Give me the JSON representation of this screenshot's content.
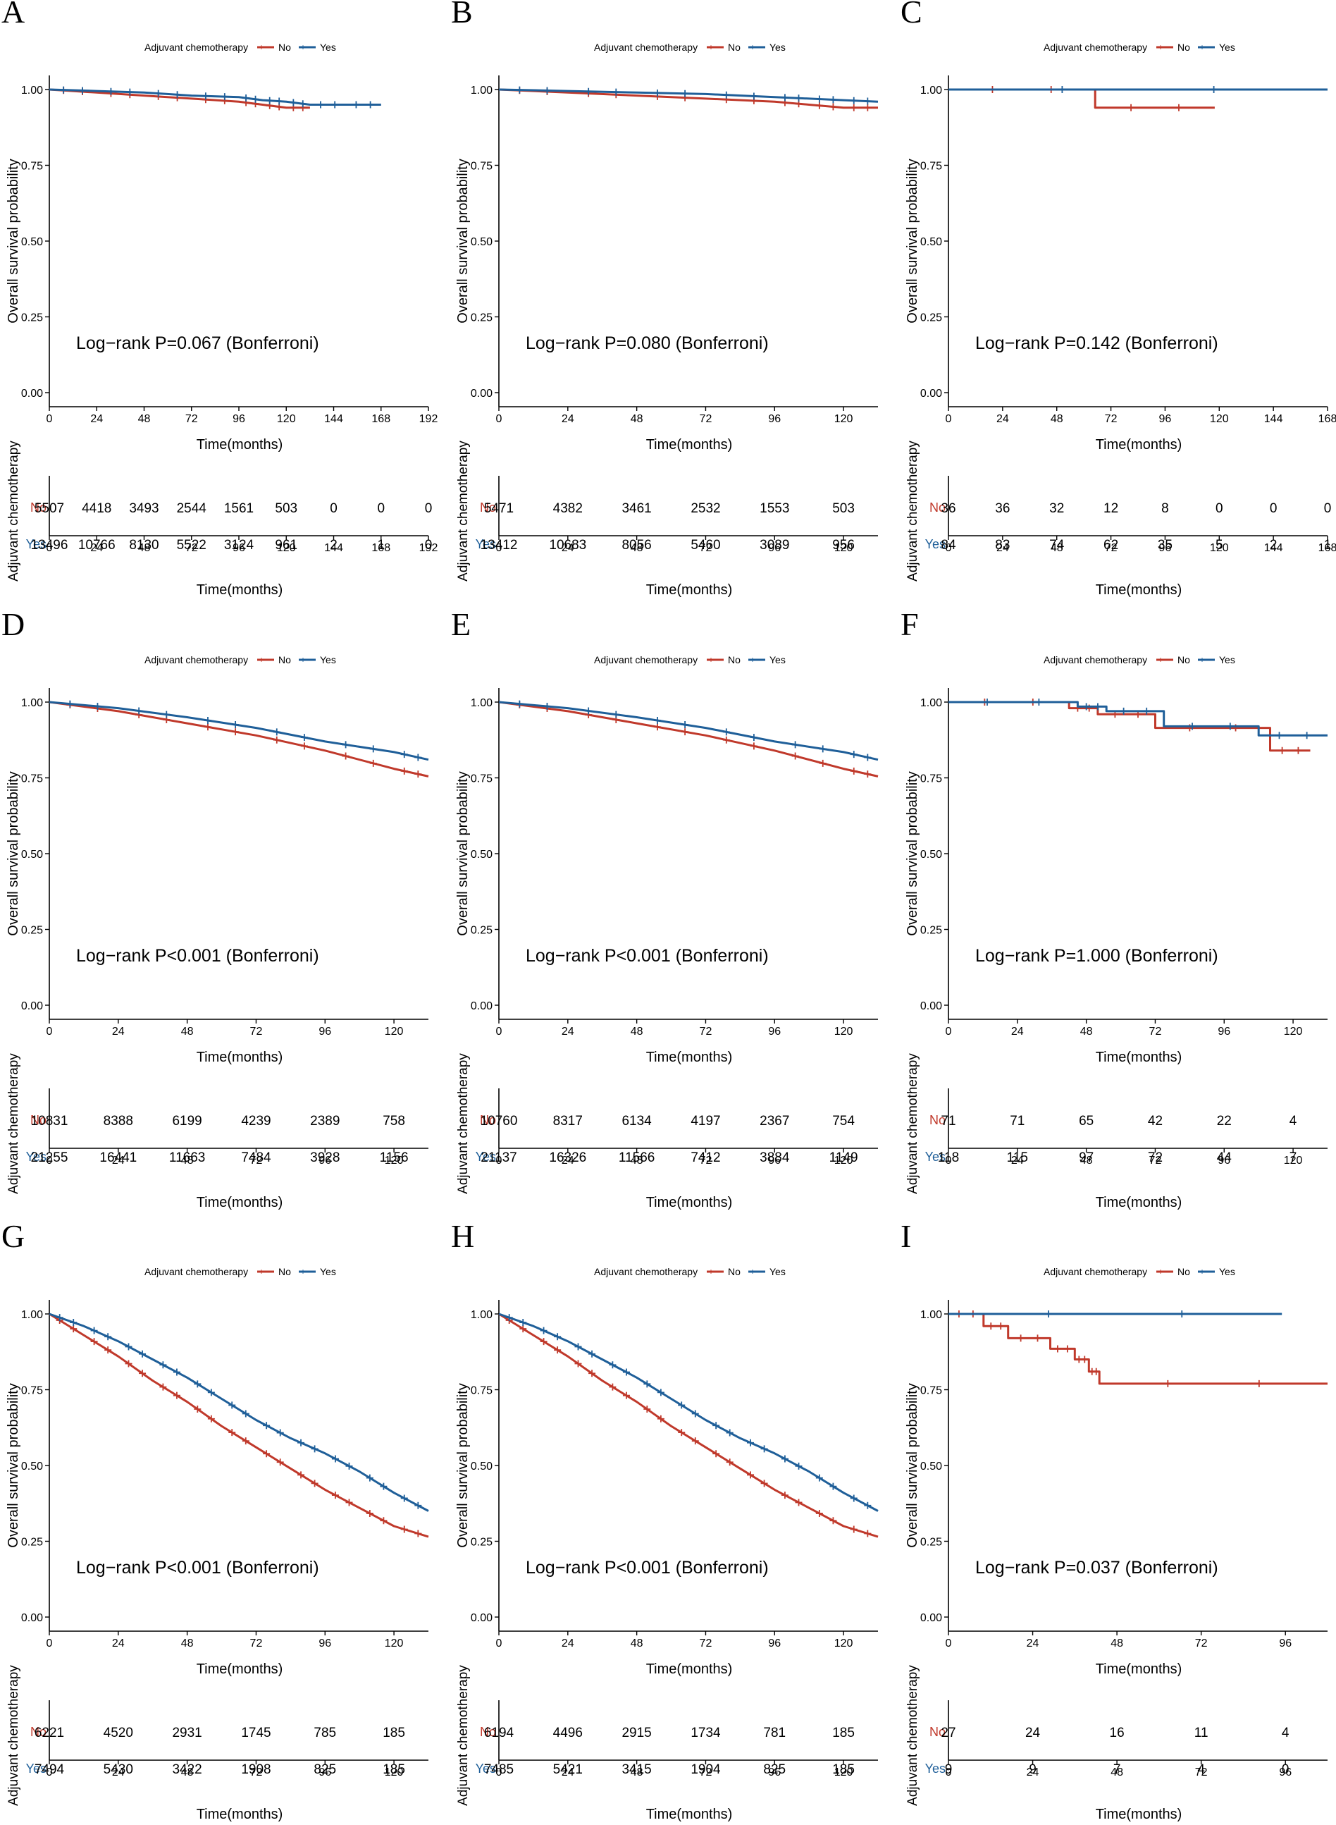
{
  "colors": {
    "no": "#C0392B",
    "yes": "#1F5F99",
    "axis": "#000000"
  },
  "chart_data": [
    {
      "type": "line",
      "kind": "kaplan-meier",
      "panel_label": "A",
      "title": "",
      "legend_title": "Adjuvant chemotherapy",
      "legend_labels": [
        "No",
        "Yes"
      ],
      "ylabel": "Overall survival probability",
      "xlabel": "Time(months)",
      "xlim": [
        0,
        192
      ],
      "ylim": [
        0,
        1.0
      ],
      "x_ticks": [
        "0",
        "24",
        "48",
        "72",
        "96",
        "120",
        "144",
        "168",
        "192"
      ],
      "y_ticks": [
        "0.00",
        "0.25",
        "0.50",
        "0.75",
        "1.00"
      ],
      "pvalue_text": "Log−rank P=0.067 (Bonferroni)",
      "series": [
        {
          "name": "No",
          "x": [
            0,
            24,
            48,
            72,
            96,
            108,
            120,
            132
          ],
          "values": [
            1.0,
            0.99,
            0.98,
            0.97,
            0.96,
            0.95,
            0.94,
            0.94
          ]
        },
        {
          "name": "Yes",
          "x": [
            0,
            24,
            48,
            72,
            96,
            108,
            120,
            132,
            150,
            168
          ],
          "values": [
            1.0,
            0.995,
            0.99,
            0.98,
            0.975,
            0.965,
            0.96,
            0.95,
            0.95,
            0.95
          ]
        }
      ],
      "risk_table": {
        "ylabel": "Adjuvant chemotherapy",
        "xlabel": "Time(months)",
        "x_ticks": [
          "0",
          "24",
          "48",
          "72",
          "96",
          "120",
          "144",
          "168",
          "192"
        ],
        "rows": [
          {
            "label": "No",
            "values": [
              "5507",
              "4418",
              "3493",
              "2544",
              "1561",
              "503",
              "0",
              "0",
              "0"
            ]
          },
          {
            "label": "Yes",
            "values": [
              "13496",
              "10766",
              "8130",
              "5522",
              "3124",
              "961",
              "2",
              "1",
              "0"
            ]
          }
        ]
      }
    },
    {
      "type": "line",
      "kind": "kaplan-meier",
      "panel_label": "B",
      "title": "",
      "legend_title": "Adjuvant chemotherapy",
      "legend_labels": [
        "No",
        "Yes"
      ],
      "ylabel": "Overall survival probability",
      "xlabel": "Time(months)",
      "xlim": [
        0,
        132
      ],
      "ylim": [
        0,
        1.0
      ],
      "x_ticks": [
        "0",
        "24",
        "48",
        "72",
        "96",
        "120"
      ],
      "y_ticks": [
        "0.00",
        "0.25",
        "0.50",
        "0.75",
        "1.00"
      ],
      "pvalue_text": "Log−rank P=0.080 (Bonferroni)",
      "series": [
        {
          "name": "No",
          "x": [
            0,
            24,
            48,
            72,
            96,
            108,
            120,
            132
          ],
          "values": [
            1.0,
            0.99,
            0.98,
            0.97,
            0.96,
            0.95,
            0.94,
            0.94
          ]
        },
        {
          "name": "Yes",
          "x": [
            0,
            24,
            48,
            72,
            96,
            108,
            120,
            132
          ],
          "values": [
            1.0,
            0.995,
            0.99,
            0.985,
            0.975,
            0.97,
            0.965,
            0.96
          ]
        }
      ],
      "risk_table": {
        "ylabel": "Adjuvant chemotherapy",
        "xlabel": "Time(months)",
        "x_ticks": [
          "0",
          "24",
          "48",
          "72",
          "96",
          "120"
        ],
        "rows": [
          {
            "label": "No",
            "values": [
              "5471",
              "4382",
              "3461",
              "2532",
              "1553",
              "503"
            ]
          },
          {
            "label": "Yes",
            "values": [
              "13412",
              "10683",
              "8056",
              "5460",
              "3089",
              "956"
            ]
          }
        ]
      }
    },
    {
      "type": "line",
      "kind": "kaplan-meier",
      "panel_label": "C",
      "title": "",
      "legend_title": "Adjuvant chemotherapy",
      "legend_labels": [
        "No",
        "Yes"
      ],
      "ylabel": "Overall survival probability",
      "xlabel": "Time(months)",
      "xlim": [
        0,
        168
      ],
      "ylim": [
        0,
        1.0
      ],
      "x_ticks": [
        "0",
        "24",
        "48",
        "72",
        "96",
        "120",
        "144",
        "168"
      ],
      "y_ticks": [
        "0.00",
        "0.25",
        "0.50",
        "0.75",
        "1.00"
      ],
      "pvalue_text": "Log−rank P=0.142 (Bonferroni)",
      "series": [
        {
          "name": "No",
          "x": [
            0,
            65,
            65,
            118
          ],
          "values": [
            1.0,
            1.0,
            0.94,
            0.94
          ]
        },
        {
          "name": "Yes",
          "x": [
            0,
            168
          ],
          "values": [
            1.0,
            1.0
          ]
        }
      ],
      "risk_table": {
        "ylabel": "Adjuvant chemotherapy",
        "xlabel": "Time(months)",
        "x_ticks": [
          "0",
          "24",
          "48",
          "72",
          "96",
          "120",
          "144",
          "168"
        ],
        "rows": [
          {
            "label": "No",
            "values": [
              "36",
              "36",
              "32",
              "12",
              "8",
              "0",
              "0",
              "0"
            ]
          },
          {
            "label": "Yes",
            "values": [
              "84",
              "83",
              "74",
              "62",
              "35",
              "5",
              "2",
              "1"
            ]
          }
        ]
      }
    },
    {
      "type": "line",
      "kind": "kaplan-meier",
      "panel_label": "D",
      "title": "",
      "legend_title": "Adjuvant chemotherapy",
      "legend_labels": [
        "No",
        "Yes"
      ],
      "ylabel": "Overall survival probability",
      "xlabel": "Time(months)",
      "xlim": [
        0,
        132
      ],
      "ylim": [
        0,
        1.0
      ],
      "x_ticks": [
        "0",
        "24",
        "48",
        "72",
        "96",
        "120"
      ],
      "y_ticks": [
        "0.00",
        "0.25",
        "0.50",
        "0.75",
        "1.00"
      ],
      "pvalue_text": "Log−rank P<0.001 (Bonferroni)",
      "series": [
        {
          "name": "No",
          "x": [
            0,
            24,
            48,
            72,
            96,
            120,
            132
          ],
          "values": [
            1.0,
            0.97,
            0.93,
            0.89,
            0.84,
            0.78,
            0.755
          ]
        },
        {
          "name": "Yes",
          "x": [
            0,
            24,
            48,
            72,
            96,
            120,
            132
          ],
          "values": [
            1.0,
            0.98,
            0.95,
            0.915,
            0.87,
            0.835,
            0.81
          ]
        }
      ],
      "risk_table": {
        "ylabel": "Adjuvant chemotherapy",
        "xlabel": "Time(months)",
        "x_ticks": [
          "0",
          "24",
          "48",
          "72",
          "96",
          "120"
        ],
        "rows": [
          {
            "label": "No",
            "values": [
              "10831",
              "8388",
              "6199",
              "4239",
              "2389",
              "758"
            ]
          },
          {
            "label": "Yes",
            "values": [
              "21255",
              "16441",
              "11663",
              "7484",
              "3928",
              "1156"
            ]
          }
        ]
      }
    },
    {
      "type": "line",
      "kind": "kaplan-meier",
      "panel_label": "E",
      "title": "",
      "legend_title": "Adjuvant chemotherapy",
      "legend_labels": [
        "No",
        "Yes"
      ],
      "ylabel": "Overall survival probability",
      "xlabel": "Time(months)",
      "xlim": [
        0,
        132
      ],
      "ylim": [
        0,
        1.0
      ],
      "x_ticks": [
        "0",
        "24",
        "48",
        "72",
        "96",
        "120"
      ],
      "y_ticks": [
        "0.00",
        "0.25",
        "0.50",
        "0.75",
        "1.00"
      ],
      "pvalue_text": "Log−rank P<0.001 (Bonferroni)",
      "series": [
        {
          "name": "No",
          "x": [
            0,
            24,
            48,
            72,
            96,
            120,
            132
          ],
          "values": [
            1.0,
            0.97,
            0.93,
            0.89,
            0.84,
            0.78,
            0.755
          ]
        },
        {
          "name": "Yes",
          "x": [
            0,
            24,
            48,
            72,
            96,
            120,
            132
          ],
          "values": [
            1.0,
            0.98,
            0.95,
            0.915,
            0.87,
            0.835,
            0.81
          ]
        }
      ],
      "risk_table": {
        "ylabel": "Adjuvant chemotherapy",
        "xlabel": "Time(months)",
        "x_ticks": [
          "0",
          "24",
          "48",
          "72",
          "96",
          "120"
        ],
        "rows": [
          {
            "label": "No",
            "values": [
              "10760",
              "8317",
              "6134",
              "4197",
              "2367",
              "754"
            ]
          },
          {
            "label": "Yes",
            "values": [
              "21137",
              "16326",
              "11566",
              "7412",
              "3884",
              "1149"
            ]
          }
        ]
      }
    },
    {
      "type": "line",
      "kind": "kaplan-meier",
      "panel_label": "F",
      "title": "",
      "legend_title": "Adjuvant chemotherapy",
      "legend_labels": [
        "No",
        "Yes"
      ],
      "ylabel": "Overall survival probability",
      "xlabel": "Time(months)",
      "xlim": [
        0,
        132
      ],
      "ylim": [
        0,
        1.0
      ],
      "x_ticks": [
        "0",
        "24",
        "48",
        "72",
        "96",
        "120"
      ],
      "y_ticks": [
        "0.00",
        "0.25",
        "0.50",
        "0.75",
        "1.00"
      ],
      "pvalue_text": "Log−rank P=1.000 (Bonferroni)",
      "series": [
        {
          "name": "No",
          "x": [
            0,
            42,
            42,
            52,
            52,
            72,
            72,
            112,
            112,
            126
          ],
          "values": [
            1.0,
            1.0,
            0.98,
            0.98,
            0.96,
            0.96,
            0.915,
            0.915,
            0.84,
            0.84
          ]
        },
        {
          "name": "Yes",
          "x": [
            0,
            45,
            45,
            55,
            55,
            75,
            75,
            108,
            108,
            132
          ],
          "values": [
            1.0,
            1.0,
            0.985,
            0.985,
            0.97,
            0.97,
            0.92,
            0.92,
            0.89,
            0.89
          ]
        }
      ],
      "risk_table": {
        "ylabel": "Adjuvant chemotherapy",
        "xlabel": "Time(months)",
        "x_ticks": [
          "0",
          "24",
          "48",
          "72",
          "96",
          "120"
        ],
        "rows": [
          {
            "label": "No",
            "values": [
              "71",
              "71",
              "65",
              "42",
              "22",
              "4"
            ]
          },
          {
            "label": "Yes",
            "values": [
              "118",
              "115",
              "97",
              "72",
              "44",
              "7"
            ]
          }
        ]
      }
    },
    {
      "type": "line",
      "kind": "kaplan-meier",
      "panel_label": "G",
      "title": "",
      "legend_title": "Adjuvant chemotherapy",
      "legend_labels": [
        "No",
        "Yes"
      ],
      "ylabel": "Overall survival probability",
      "xlabel": "Time(months)",
      "xlim": [
        0,
        132
      ],
      "ylim": [
        0,
        1.0
      ],
      "x_ticks": [
        "0",
        "24",
        "48",
        "72",
        "96",
        "120"
      ],
      "y_ticks": [
        "0.00",
        "0.25",
        "0.50",
        "0.75",
        "1.00"
      ],
      "pvalue_text": "Log−rank P<0.001 (Bonferroni)",
      "series": [
        {
          "name": "No",
          "x": [
            0,
            12,
            24,
            36,
            48,
            60,
            72,
            84,
            96,
            108,
            120,
            132
          ],
          "values": [
            1.0,
            0.93,
            0.86,
            0.78,
            0.71,
            0.63,
            0.56,
            0.49,
            0.42,
            0.36,
            0.3,
            0.265
          ]
        },
        {
          "name": "Yes",
          "x": [
            0,
            12,
            24,
            36,
            48,
            60,
            72,
            84,
            96,
            108,
            120,
            132
          ],
          "values": [
            1.0,
            0.96,
            0.91,
            0.85,
            0.79,
            0.72,
            0.65,
            0.59,
            0.54,
            0.48,
            0.41,
            0.35
          ]
        }
      ],
      "risk_table": {
        "ylabel": "Adjuvant chemotherapy",
        "xlabel": "Time(months)",
        "x_ticks": [
          "0",
          "24",
          "48",
          "72",
          "96",
          "120"
        ],
        "rows": [
          {
            "label": "No",
            "values": [
              "6221",
              "4520",
              "2931",
              "1745",
              "785",
              "185"
            ]
          },
          {
            "label": "Yes",
            "values": [
              "7494",
              "5430",
              "3422",
              "1908",
              "825",
              "185"
            ]
          }
        ]
      }
    },
    {
      "type": "line",
      "kind": "kaplan-meier",
      "panel_label": "H",
      "title": "",
      "legend_title": "Adjuvant chemotherapy",
      "legend_labels": [
        "No",
        "Yes"
      ],
      "ylabel": "Overall survival probability",
      "xlabel": "Time(months)",
      "xlim": [
        0,
        132
      ],
      "ylim": [
        0,
        1.0
      ],
      "x_ticks": [
        "0",
        "24",
        "48",
        "72",
        "96",
        "120"
      ],
      "y_ticks": [
        "0.00",
        "0.25",
        "0.50",
        "0.75",
        "1.00"
      ],
      "pvalue_text": "Log−rank P<0.001 (Bonferroni)",
      "series": [
        {
          "name": "No",
          "x": [
            0,
            12,
            24,
            36,
            48,
            60,
            72,
            84,
            96,
            108,
            120,
            132
          ],
          "values": [
            1.0,
            0.93,
            0.86,
            0.78,
            0.71,
            0.63,
            0.56,
            0.49,
            0.42,
            0.36,
            0.3,
            0.265
          ]
        },
        {
          "name": "Yes",
          "x": [
            0,
            12,
            24,
            36,
            48,
            60,
            72,
            84,
            96,
            108,
            120,
            132
          ],
          "values": [
            1.0,
            0.96,
            0.91,
            0.85,
            0.79,
            0.72,
            0.65,
            0.59,
            0.54,
            0.48,
            0.41,
            0.35
          ]
        }
      ],
      "risk_table": {
        "ylabel": "Adjuvant chemotherapy",
        "xlabel": "Time(months)",
        "x_ticks": [
          "0",
          "24",
          "48",
          "72",
          "96",
          "120"
        ],
        "rows": [
          {
            "label": "No",
            "values": [
              "6194",
              "4496",
              "2915",
              "1734",
              "781",
              "185"
            ]
          },
          {
            "label": "Yes",
            "values": [
              "7485",
              "5421",
              "3415",
              "1904",
              "825",
              "185"
            ]
          }
        ]
      }
    },
    {
      "type": "line",
      "kind": "kaplan-meier",
      "panel_label": "I",
      "title": "",
      "legend_title": "Adjuvant chemotherapy",
      "legend_labels": [
        "No",
        "Yes"
      ],
      "ylabel": "Overall survival probability",
      "xlabel": "Time(months)",
      "xlim": [
        0,
        108
      ],
      "ylim": [
        0,
        1.0
      ],
      "x_ticks": [
        "0",
        "24",
        "48",
        "72",
        "96"
      ],
      "y_ticks": [
        "0.00",
        "0.25",
        "0.50",
        "0.75",
        "1.00"
      ],
      "pvalue_text": "Log−rank P=0.037 (Bonferroni)",
      "series": [
        {
          "name": "No",
          "x": [
            0,
            10,
            10,
            17,
            17,
            29,
            29,
            36,
            36,
            40,
            40,
            43,
            43,
            108
          ],
          "values": [
            1.0,
            1.0,
            0.96,
            0.96,
            0.92,
            0.92,
            0.885,
            0.885,
            0.85,
            0.85,
            0.81,
            0.81,
            0.77,
            0.77
          ]
        },
        {
          "name": "Yes",
          "x": [
            0,
            95
          ],
          "values": [
            1.0,
            1.0
          ]
        }
      ],
      "risk_table": {
        "ylabel": "Adjuvant chemotherapy",
        "xlabel": "Time(months)",
        "x_ticks": [
          "0",
          "24",
          "48",
          "72",
          "96"
        ],
        "rows": [
          {
            "label": "No",
            "values": [
              "27",
              "24",
              "16",
              "11",
              "4"
            ]
          },
          {
            "label": "Yes",
            "values": [
              "9",
              "9",
              "7",
              "4",
              "0"
            ]
          }
        ]
      }
    }
  ]
}
